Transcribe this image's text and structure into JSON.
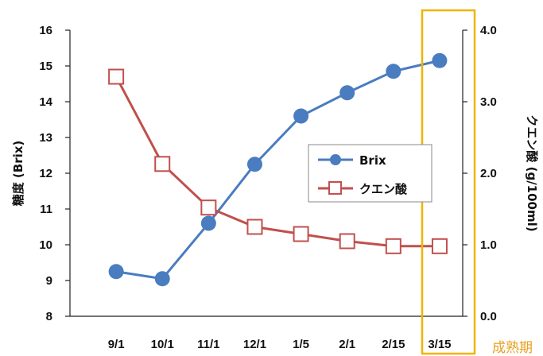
{
  "chart_data": {
    "type": "line",
    "categories": [
      "9/1",
      "10/1",
      "11/1",
      "12/1",
      "1/5",
      "2/1",
      "2/15",
      "3/15"
    ],
    "series": [
      {
        "name": "Brix",
        "axis": "left",
        "marker": "filled-circle",
        "color": "#4a7cc0",
        "values": [
          9.25,
          9.05,
          10.6,
          12.25,
          13.6,
          14.25,
          14.85,
          15.15
        ]
      },
      {
        "name": "クエン酸",
        "axis": "right",
        "marker": "open-square",
        "color": "#c0504d",
        "values": [
          3.35,
          2.13,
          1.52,
          1.25,
          1.15,
          1.05,
          0.98,
          0.98
        ]
      }
    ],
    "left_axis": {
      "label": "糖度 (Brix)",
      "ylim": [
        8,
        16
      ],
      "ticks": [
        "8",
        "9",
        "10",
        "11",
        "12",
        "13",
        "14",
        "15",
        "16"
      ]
    },
    "right_axis": {
      "label": "クエン酸 (g/100ml)",
      "ylim": [
        0,
        4
      ],
      "ticks": [
        "0.0",
        "1.0",
        "2.0",
        "3.0",
        "4.0"
      ]
    },
    "highlight": {
      "category": "3/15",
      "label": "成熟期",
      "color": "#f0b400"
    },
    "legend": {
      "position": "center-right"
    },
    "grid": false
  }
}
